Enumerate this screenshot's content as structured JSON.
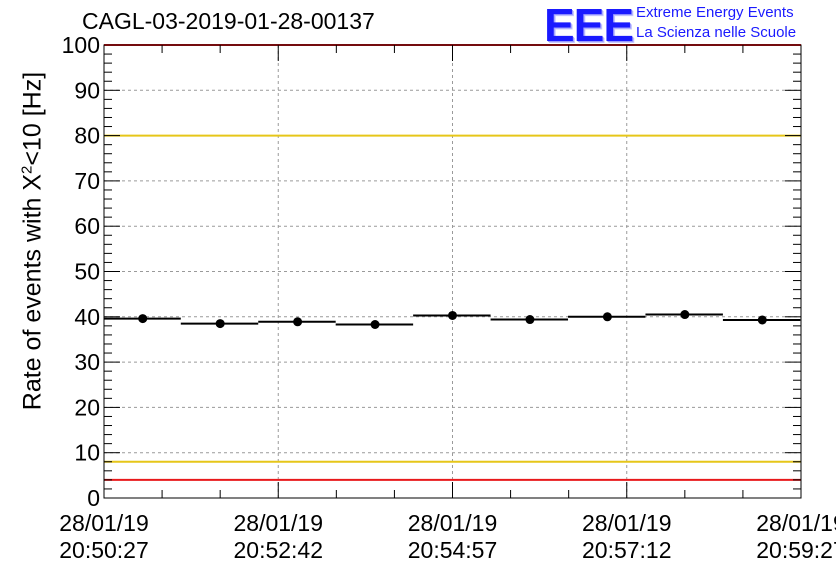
{
  "header": {
    "title": "CAGL-03-2019-01-28-00137",
    "logo_text": "EEE",
    "logo_line1": "Extreme Energy Events",
    "logo_line2": "La Scienza nelle Scuole"
  },
  "colors": {
    "red": "#e8191b",
    "yellow": "#e6c619",
    "logo": "#1a1aff",
    "grid": "#9a9a9a"
  },
  "chart_data": {
    "type": "scatter",
    "title": "CAGL-03-2019-01-28-00137",
    "ylabel_pre": "Rate of events with X",
    "ylabel_sup": "2",
    "ylabel_post": "<10 [Hz]",
    "xlabel": "",
    "ylim": [
      0,
      100
    ],
    "y_ticks": [
      0,
      10,
      20,
      30,
      40,
      50,
      60,
      70,
      80,
      90,
      100
    ],
    "xlim": [
      0,
      540
    ],
    "x_ticks": [
      {
        "t": 0,
        "date": "28/01/19",
        "time": "20:50:27"
      },
      {
        "t": 135,
        "date": "28/01/19",
        "time": "20:52:42"
      },
      {
        "t": 270,
        "date": "28/01/19",
        "time": "20:54:57"
      },
      {
        "t": 405,
        "date": "28/01/19",
        "time": "20:57:12"
      },
      {
        "t": 540,
        "date": "28/01/19",
        "time": "20:59:27"
      }
    ],
    "bin_width": 60,
    "points": [
      {
        "t": 30,
        "value": 39.6
      },
      {
        "t": 90,
        "value": 38.5
      },
      {
        "t": 150,
        "value": 38.9
      },
      {
        "t": 210,
        "value": 38.3
      },
      {
        "t": 270,
        "value": 40.3
      },
      {
        "t": 330,
        "value": 39.4
      },
      {
        "t": 390,
        "value": 40.0
      },
      {
        "t": 450,
        "value": 40.5
      },
      {
        "t": 510,
        "value": 39.3
      }
    ],
    "reference_lines": [
      {
        "value": 100,
        "color": "red"
      },
      {
        "value": 80,
        "color": "yellow"
      },
      {
        "value": 8,
        "color": "yellow"
      },
      {
        "value": 4,
        "color": "red"
      }
    ],
    "grid": true
  }
}
